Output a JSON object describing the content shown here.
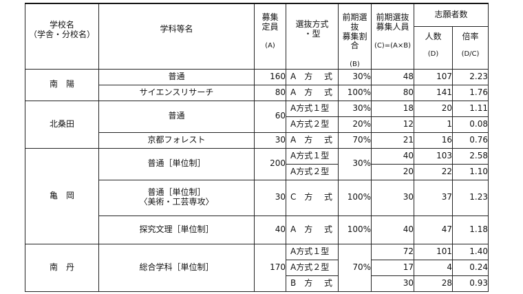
{
  "headers": {
    "school_line1": "学校名",
    "school_line2": "（学舎・分校名）",
    "dept": "学科等名",
    "quota_line1": "募集",
    "quota_line2": "定員",
    "quota_unit": "(A)",
    "method_line1": "選抜方式",
    "method_line2": "・型",
    "ratio_line1": "前期選抜",
    "ratio_line2": "募集割合",
    "ratio_unit": "(B)",
    "early_line1": "前期選抜",
    "early_line2": "募集人員",
    "early_unit": "(C)=(A×B)",
    "applicants_group": "志願者数",
    "count_label": "人数",
    "count_unit": "(D)",
    "rate_label": "倍率",
    "rate_unit": "(D/C)"
  },
  "rows": {
    "nanyo_futsu": {
      "school": "南　陽",
      "dept": "普通",
      "quota": "160",
      "method_l": "A　方",
      "method_r": "式",
      "ratio": "30%",
      "early": "48",
      "count": "107",
      "rate": "2.23"
    },
    "nanyo_science": {
      "dept": "サイエンスリサーチ",
      "quota": "80",
      "method_l": "A　方",
      "method_r": "式",
      "ratio": "100%",
      "early": "80",
      "count": "141",
      "rate": "1.76"
    },
    "kitakuwada_futsu1": {
      "school": "北桑田",
      "dept": "普通",
      "quota": "60",
      "method_l": "A方式１型",
      "method_r": "",
      "ratio": "30%",
      "early": "18",
      "count": "20",
      "rate": "1.11"
    },
    "kitakuwada_futsu2": {
      "method_l": "A方式２型",
      "method_r": "",
      "ratio": "20%",
      "early": "12",
      "count": "1",
      "rate": "0.08"
    },
    "kitakuwada_forest": {
      "dept": "京都フォレスト",
      "quota": "30",
      "method_l": "A　方",
      "method_r": "式",
      "ratio": "70%",
      "early": "21",
      "count": "16",
      "rate": "0.76"
    },
    "kameoka_futsu1": {
      "school": "亀　岡",
      "dept": "普通［単位制］",
      "quota": "200",
      "method_l": "A方式１型",
      "method_r": "",
      "ratio": "30%",
      "early": "40",
      "count": "103",
      "rate": "2.58"
    },
    "kameoka_futsu2": {
      "method_l": "A方式２型",
      "method_r": "",
      "early": "20",
      "count": "22",
      "rate": "1.10"
    },
    "kameoka_art": {
      "dept_line1": "普通［単位制］",
      "dept_line2": "〈美術・工芸専攻〉",
      "quota": "30",
      "method_l": "C　方",
      "method_r": "式",
      "ratio": "100%",
      "early": "30",
      "count": "37",
      "rate": "1.23"
    },
    "kameoka_tankyu": {
      "dept": "探究文理［単位制］",
      "quota": "40",
      "method_l": "A　方",
      "method_r": "式",
      "ratio": "100%",
      "early": "40",
      "count": "47",
      "rate": "1.18"
    },
    "nantan_1": {
      "school": "南　丹",
      "dept": "総合学科［単位制］",
      "quota": "170",
      "method_l": "A方式１型",
      "method_r": "",
      "ratio": "70%",
      "early": "72",
      "count": "101",
      "rate": "1.40"
    },
    "nantan_2": {
      "method_l": "A方式２型",
      "method_r": "",
      "early": "17",
      "count": "4",
      "rate": "0.24"
    },
    "nantan_3": {
      "method_l": "B　方",
      "method_r": "式",
      "early": "30",
      "count": "28",
      "rate": "0.93"
    }
  }
}
